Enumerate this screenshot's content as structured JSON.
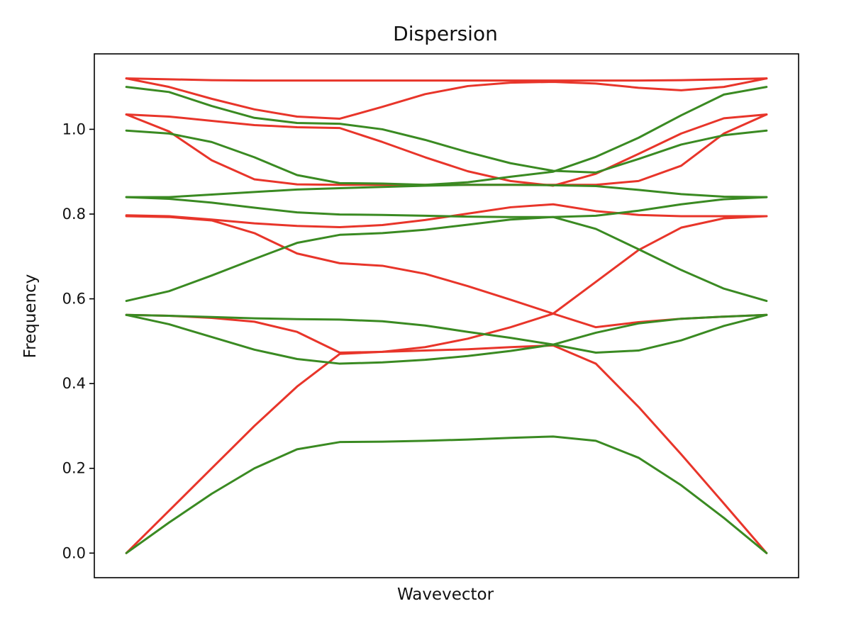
{
  "chart_data": {
    "type": "line",
    "title": "Dispersion",
    "xlabel": "Wavevector",
    "ylabel": "Frequency",
    "ylim": [
      -0.058,
      1.178
    ],
    "yticks": [
      0.0,
      0.2,
      0.4,
      0.6,
      0.8,
      1.0
    ],
    "ytick_labels": [
      "0.0",
      "0.2",
      "0.4",
      "0.6",
      "0.8",
      "1.0"
    ],
    "xlim": [
      -0.75,
      15.75
    ],
    "x": [
      0,
      1,
      2,
      3,
      4,
      5,
      6,
      7,
      8,
      9,
      10,
      11,
      12,
      13,
      14,
      15
    ],
    "grid": false,
    "legend": "none",
    "colors": {
      "red": "#e8352a",
      "green": "#3a8a22"
    },
    "series": [
      {
        "color": "red",
        "values": [
          0.0,
          0.1,
          0.2,
          0.3,
          0.393,
          0.47,
          0.475,
          0.486,
          0.506,
          0.533,
          0.565,
          0.64,
          0.715,
          0.768,
          0.79,
          0.795
        ]
      },
      {
        "color": "red",
        "values": [
          0.795,
          0.793,
          0.785,
          0.755,
          0.707,
          0.684,
          0.678,
          0.659,
          0.63,
          0.598,
          0.565,
          0.533,
          0.545,
          0.553,
          0.558,
          0.562
        ]
      },
      {
        "color": "red",
        "values": [
          0.562,
          0.56,
          0.555,
          0.546,
          0.522,
          0.473,
          0.475,
          0.478,
          0.481,
          0.486,
          0.49,
          0.447,
          0.345,
          0.233,
          0.117,
          0.0
        ]
      },
      {
        "color": "red",
        "values": [
          0.797,
          0.795,
          0.787,
          0.778,
          0.772,
          0.769,
          0.774,
          0.786,
          0.801,
          0.816,
          0.823,
          0.807,
          0.798,
          0.795,
          0.795,
          0.795
        ]
      },
      {
        "color": "red",
        "values": [
          1.035,
          0.995,
          0.927,
          0.882,
          0.87,
          0.869,
          0.869,
          0.869,
          0.869,
          0.869,
          0.869,
          0.869,
          0.878,
          0.914,
          0.99,
          1.035
        ]
      },
      {
        "color": "red",
        "values": [
          1.035,
          1.03,
          1.02,
          1.01,
          1.005,
          1.003,
          0.97,
          0.934,
          0.901,
          0.878,
          0.867,
          0.895,
          0.942,
          0.99,
          1.026,
          1.035
        ]
      },
      {
        "color": "red",
        "values": [
          1.12,
          1.1,
          1.072,
          1.047,
          1.03,
          1.025,
          1.053,
          1.083,
          1.102,
          1.11,
          1.112,
          1.108,
          1.098,
          1.092,
          1.1,
          1.12
        ]
      },
      {
        "color": "red",
        "values": [
          1.12,
          1.118,
          1.116,
          1.115,
          1.115,
          1.115,
          1.115,
          1.115,
          1.115,
          1.115,
          1.115,
          1.115,
          1.115,
          1.116,
          1.118,
          1.12
        ]
      },
      {
        "color": "green",
        "values": [
          0.0,
          0.072,
          0.14,
          0.2,
          0.245,
          0.262,
          0.263,
          0.265,
          0.268,
          0.272,
          0.275,
          0.265,
          0.225,
          0.16,
          0.083,
          0.0
        ]
      },
      {
        "color": "green",
        "values": [
          0.562,
          0.54,
          0.51,
          0.48,
          0.458,
          0.447,
          0.45,
          0.456,
          0.465,
          0.477,
          0.492,
          0.52,
          0.542,
          0.553,
          0.558,
          0.562
        ]
      },
      {
        "color": "green",
        "values": [
          0.562,
          0.56,
          0.557,
          0.554,
          0.552,
          0.551,
          0.547,
          0.537,
          0.522,
          0.508,
          0.492,
          0.473,
          0.478,
          0.502,
          0.536,
          0.562
        ]
      },
      {
        "color": "green",
        "values": [
          0.595,
          0.618,
          0.655,
          0.694,
          0.732,
          0.751,
          0.755,
          0.763,
          0.775,
          0.787,
          0.793,
          0.765,
          0.717,
          0.668,
          0.624,
          0.595
        ]
      },
      {
        "color": "green",
        "values": [
          0.84,
          0.836,
          0.827,
          0.815,
          0.804,
          0.799,
          0.798,
          0.796,
          0.794,
          0.793,
          0.793,
          0.796,
          0.808,
          0.823,
          0.835,
          0.84
        ]
      },
      {
        "color": "green",
        "values": [
          0.84,
          0.84,
          0.846,
          0.852,
          0.858,
          0.861,
          0.864,
          0.867,
          0.869,
          0.869,
          0.868,
          0.866,
          0.857,
          0.847,
          0.841,
          0.84
        ]
      },
      {
        "color": "green",
        "values": [
          0.997,
          0.99,
          0.97,
          0.934,
          0.892,
          0.873,
          0.872,
          0.869,
          0.875,
          0.888,
          0.9,
          0.935,
          0.98,
          1.033,
          1.082,
          1.1
        ]
      },
      {
        "color": "green",
        "values": [
          1.1,
          1.088,
          1.055,
          1.027,
          1.015,
          1.013,
          1.0,
          0.975,
          0.946,
          0.92,
          0.902,
          0.898,
          0.93,
          0.964,
          0.986,
          0.997
        ]
      }
    ]
  }
}
